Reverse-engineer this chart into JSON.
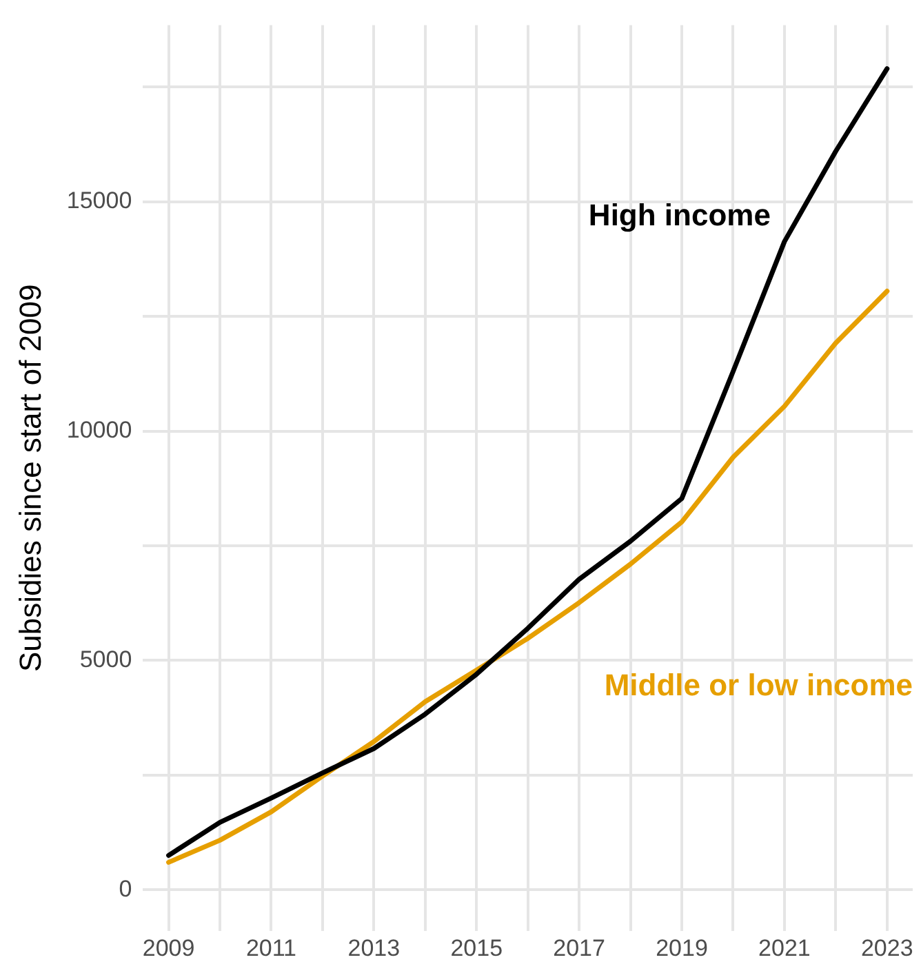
{
  "chart_data": {
    "type": "line",
    "ylabel": "Subsidies since start of 2009",
    "x": [
      2009,
      2010,
      2011,
      2012,
      2013,
      2014,
      2015,
      2016,
      2017,
      2018,
      2019,
      2020,
      2021,
      2022,
      2023
    ],
    "series": [
      {
        "name": "High income",
        "color": "#000000",
        "values": [
          750,
          1470,
          2000,
          2550,
          3080,
          3830,
          4700,
          5700,
          6770,
          7600,
          8530,
          11300,
          14130,
          16100,
          17900
        ]
      },
      {
        "name": "Middle or low income",
        "color": "#e69f00",
        "values": [
          600,
          1080,
          1700,
          2480,
          3230,
          4100,
          4790,
          5480,
          6260,
          7100,
          8020,
          9430,
          10540,
          11920,
          13050
        ]
      }
    ],
    "xlim": [
      2008.5,
      2023.5
    ],
    "xticks": [
      2009,
      {
        "value": 2010,
        "label": null
      },
      2011,
      {
        "value": 2012,
        "label": null
      },
      2013,
      {
        "value": 2014,
        "label": null
      },
      2015,
      {
        "value": 2016,
        "label": null
      },
      2017,
      {
        "value": 2018,
        "label": null
      },
      2019,
      {
        "value": 2020,
        "label": null
      },
      2021,
      {
        "value": 2022,
        "label": null
      },
      2023
    ],
    "ylim": [
      -900,
      18850
    ],
    "yticks": [
      0,
      {
        "value": 2500,
        "label": null
      },
      5000,
      {
        "value": 7500,
        "label": null
      },
      10000,
      {
        "value": 12500,
        "label": null
      },
      15000,
      {
        "value": 17500,
        "label": null
      }
    ],
    "grid": true,
    "legend": false,
    "marker": "none",
    "line_style": "solid"
  }
}
